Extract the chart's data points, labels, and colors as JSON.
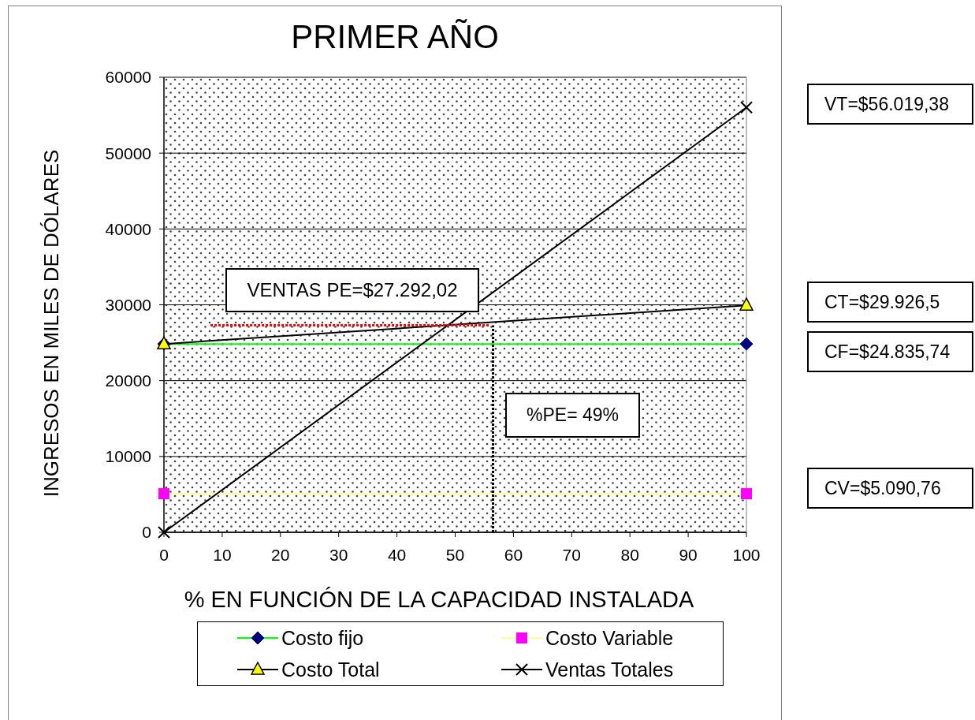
{
  "chart_data": {
    "type": "line",
    "title": "PRIMER AÑO",
    "xlabel": "% EN FUNCIÓN DE LA CAPACIDAD INSTALADA",
    "ylabel": "INGRESOS EN MILES DE DÓLARES",
    "x": [
      0,
      100
    ],
    "series": [
      {
        "name": "Costo fijo",
        "color": "#00ff00",
        "colors": [
          "#000080",
          "#000080"
        ],
        "marker": "diamond",
        "values": [
          24835.74,
          24835.74
        ]
      },
      {
        "name": "Costo Variable",
        "color": "#ffff99",
        "colors": [
          "#ff00ff",
          "#ff00ff"
        ],
        "marker": "square",
        "values": [
          5090.76,
          5090.76
        ]
      },
      {
        "name": "Costo Total",
        "color": "#000000",
        "colors": [
          "#ffff00",
          "#ffff00"
        ],
        "marker": "triangle",
        "values": [
          24835.74,
          29926.5
        ]
      },
      {
        "name": "Ventas Totales",
        "color": "#000000",
        "marker": "cross",
        "values": [
          0,
          56019.38
        ]
      },
      {
        "color": "#ff0000",
        "x": [
          8,
          56
        ],
        "values": [
          27292.02,
          27292.02
        ],
        "marker": "none",
        "line_style": "dotted"
      },
      {
        "color": "#000000",
        "x": [
          56.5,
          56.5
        ],
        "values": [
          0,
          27292.02
        ],
        "marker": "none",
        "line_style": "dotted"
      }
    ],
    "xlim": [
      0,
      100
    ],
    "xticks": [
      0,
      10,
      20,
      30,
      40,
      50,
      60,
      70,
      80,
      90,
      100
    ],
    "ylim": [
      0,
      60000
    ],
    "yticks": [
      0,
      10000,
      20000,
      30000,
      40000,
      50000,
      60000
    ],
    "grid": "y",
    "legend": "bottom",
    "line_style": "solid",
    "annotations": [
      "VENTAS PE=$27.292,02",
      "%PE= 49%",
      "VT=$56.019,38",
      "CT=$29.926,5",
      "CF=$24.835,74",
      "CV=$5.090,76"
    ]
  }
}
